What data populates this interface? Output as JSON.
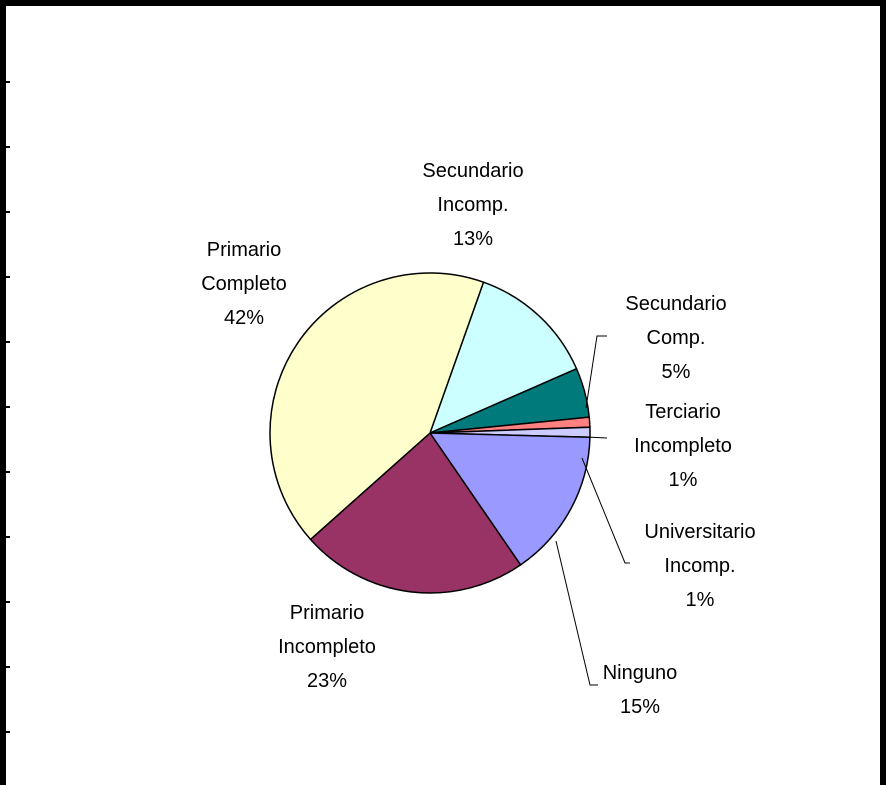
{
  "chart_data": {
    "type": "pie",
    "title": "",
    "slices": [
      {
        "label_lines": [
          "Secundario",
          "Incomp."
        ],
        "value": 13,
        "percent_label": "13%",
        "color": "#CCFFFF"
      },
      {
        "label_lines": [
          "Secundario",
          "Comp."
        ],
        "value": 5,
        "percent_label": "5%",
        "color": "#007A7A"
      },
      {
        "label_lines": [
          "Terciario",
          "Incompleto"
        ],
        "value": 1,
        "percent_label": "1%",
        "color": "#FF8080"
      },
      {
        "label_lines": [
          "Universitario",
          "Incomp."
        ],
        "value": 1,
        "percent_label": "1%",
        "color": "#CCCCFF"
      },
      {
        "label_lines": [
          "Ninguno"
        ],
        "value": 15,
        "percent_label": "15%",
        "color": "#9999FF"
      },
      {
        "label_lines": [
          "Primario",
          "Incompleto"
        ],
        "value": 23,
        "percent_label": "23%",
        "color": "#993366"
      },
      {
        "label_lines": [
          "Primario",
          "Completo"
        ],
        "value": 42,
        "percent_label": "42%",
        "color": "#FFFFCC"
      }
    ],
    "legend": "none",
    "data_labels": "outside with leader lines where needed"
  }
}
